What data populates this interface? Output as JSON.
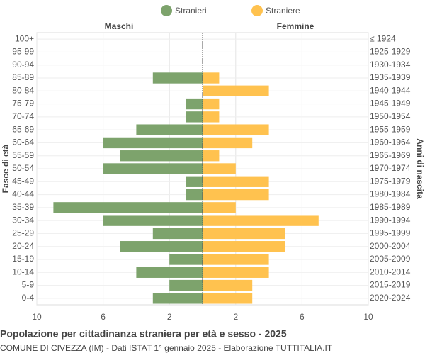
{
  "chart_data": {
    "type": "pyramid",
    "title": "Popolazione per cittadinanza straniera per età e sesso - 2025",
    "subtitle": "COMUNE DI CIVEZZA (IM) - Dati ISTAT 1° gennaio 2025 - Elaborazione TUTTITALIA.IT",
    "left_header": "Maschi",
    "right_header": "Femmine",
    "y_label": "Fasce di età",
    "y2_label": "Anni di nascita",
    "categories": [
      "100+",
      "95-99",
      "90-94",
      "85-89",
      "80-84",
      "75-79",
      "70-74",
      "65-69",
      "60-64",
      "55-59",
      "50-54",
      "45-49",
      "40-44",
      "35-39",
      "30-34",
      "25-29",
      "20-24",
      "15-19",
      "10-14",
      "5-9",
      "0-4"
    ],
    "birth_years": [
      "≤ 1924",
      "1925-1929",
      "1930-1934",
      "1935-1939",
      "1940-1944",
      "1945-1949",
      "1950-1954",
      "1955-1959",
      "1960-1964",
      "1965-1969",
      "1970-1974",
      "1975-1979",
      "1980-1984",
      "1985-1989",
      "1990-1994",
      "1995-1999",
      "2000-2004",
      "2005-2009",
      "2010-2014",
      "2015-2019",
      "2020-2024"
    ],
    "series": [
      {
        "name": "Stranieri",
        "color": "#7da36c",
        "side": "left",
        "values": [
          0,
          0,
          0,
          3,
          0,
          1,
          1,
          4,
          6,
          5,
          6,
          1,
          1,
          9,
          6,
          3,
          5,
          2,
          4,
          2,
          3
        ]
      },
      {
        "name": "Straniere",
        "color": "#ffc24f",
        "side": "right",
        "values": [
          0,
          0,
          0,
          1,
          4,
          1,
          1,
          4,
          3,
          1,
          2,
          4,
          4,
          2,
          7,
          5,
          5,
          4,
          4,
          3,
          3
        ]
      }
    ],
    "xlim": [
      -10,
      10
    ],
    "xticks": [
      {
        "value": -10,
        "label": "10"
      },
      {
        "value": -6,
        "label": "6"
      },
      {
        "value": -2,
        "label": "2"
      },
      2,
      6,
      10
    ],
    "grid": true
  }
}
